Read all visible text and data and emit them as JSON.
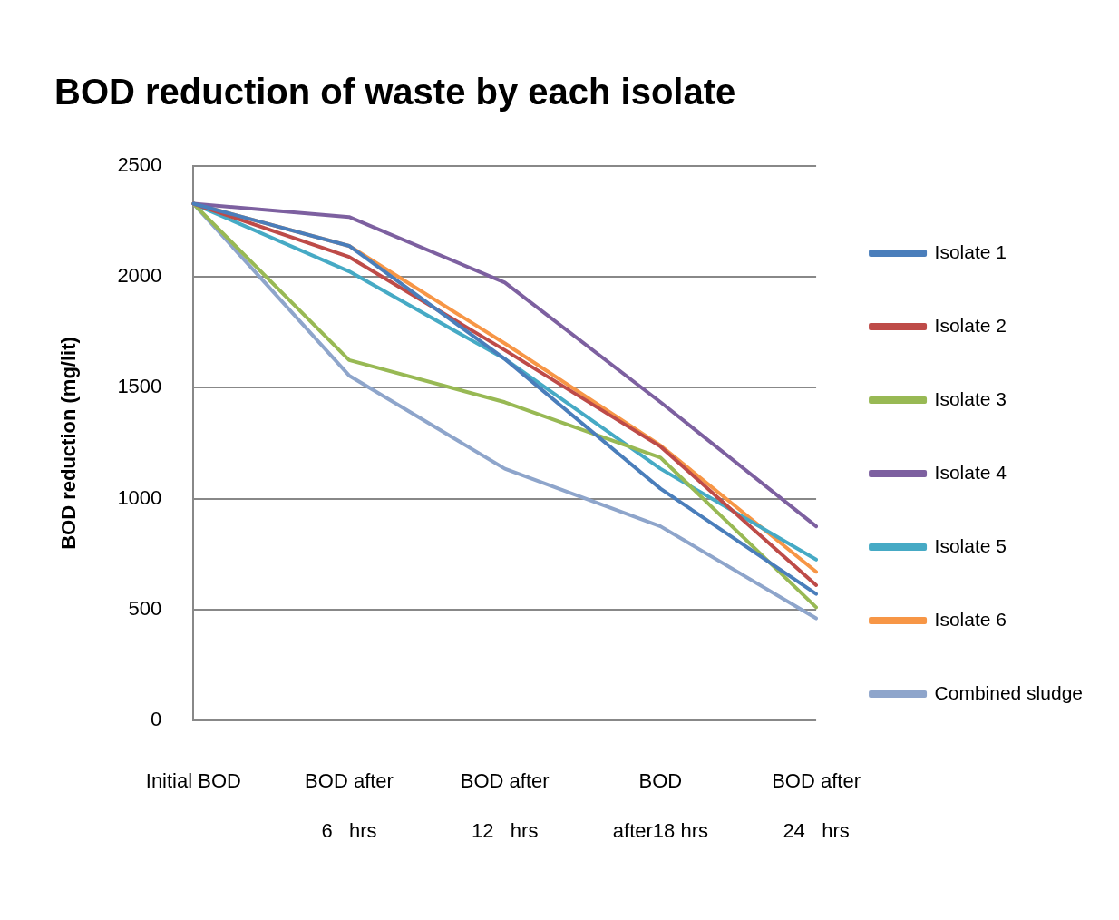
{
  "chart_data": {
    "type": "line",
    "title": "BOD reduction of waste by each isolate",
    "ylabel": "BOD reduction (mg/lit)",
    "categories": [
      "Initial BOD",
      "BOD after\n6   hrs",
      "BOD after\n12   hrs",
      "BOD\nafter18 hrs",
      "BOD after\n24   hrs"
    ],
    "series": [
      {
        "name": "Isolate 1",
        "color": "#4a7ebb",
        "values": [
          2330,
          2140,
          1630,
          1045,
          570
        ]
      },
      {
        "name": "Isolate 2",
        "color": "#be4b48",
        "values": [
          2330,
          2090,
          1670,
          1235,
          610
        ]
      },
      {
        "name": "Isolate 3",
        "color": "#98b954",
        "values": [
          2330,
          1625,
          1435,
          1185,
          510
        ]
      },
      {
        "name": "Isolate 4",
        "color": "#7d60a0",
        "values": [
          2330,
          2270,
          1975,
          1435,
          875
        ]
      },
      {
        "name": "Isolate 5",
        "color": "#46aac5",
        "values": [
          2330,
          2025,
          1630,
          1135,
          725
        ]
      },
      {
        "name": "Isolate 6",
        "color": "#f79646",
        "values": [
          2330,
          2140,
          1700,
          1240,
          670
        ]
      },
      {
        "name": "Combined sludge",
        "color": "#8ea5cb",
        "values": [
          2330,
          1555,
          1135,
          875,
          460
        ]
      }
    ],
    "ylim": [
      0,
      2500
    ],
    "yticks": [
      0,
      500,
      1000,
      1500,
      2000,
      2500
    ],
    "grid": "y",
    "legend": "right",
    "marker": "none",
    "line_style": "solid"
  }
}
